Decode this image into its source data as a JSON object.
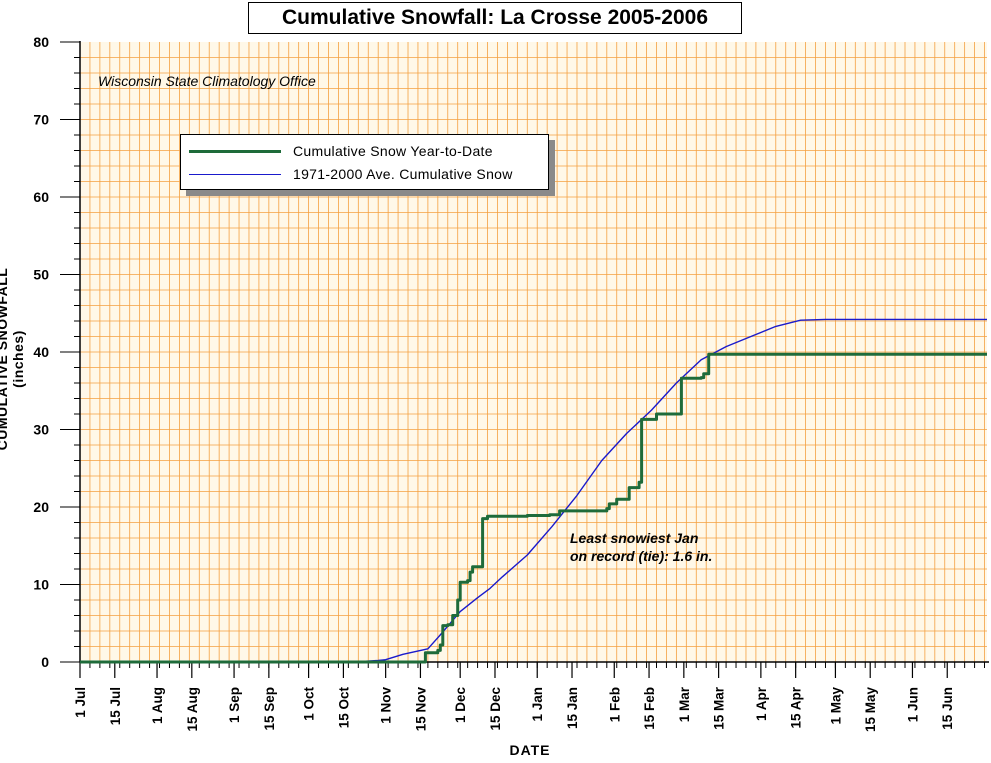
{
  "chart_data": {
    "type": "line",
    "title": "Cumulative Snowfall: La Crosse 2005-2006",
    "source_note": "Wisconsin State Climatology Office",
    "xlabel": "DATE",
    "ylabel": "CUMULATIVE SNOWFALL (inches)",
    "ylim": [
      0,
      80
    ],
    "yticks": [
      "0",
      "10",
      "20",
      "30",
      "40",
      "50",
      "60",
      "70",
      "80"
    ],
    "xlim_days": [
      0,
      365
    ],
    "x_unit": "days from 1 Jul",
    "xticks": [
      {
        "label": "1 Jul",
        "day": 0
      },
      {
        "label": "15 Jul",
        "day": 14
      },
      {
        "label": "1 Aug",
        "day": 31
      },
      {
        "label": "15 Aug",
        "day": 45
      },
      {
        "label": "1 Sep",
        "day": 62
      },
      {
        "label": "15 Sep",
        "day": 76
      },
      {
        "label": "1 Oct",
        "day": 92
      },
      {
        "label": "15 Oct",
        "day": 106
      },
      {
        "label": "1 Nov",
        "day": 123
      },
      {
        "label": "15 Nov",
        "day": 137
      },
      {
        "label": "1 Dec",
        "day": 153
      },
      {
        "label": "15 Dec",
        "day": 167
      },
      {
        "label": "1 Jan",
        "day": 184
      },
      {
        "label": "15 Jan",
        "day": 198
      },
      {
        "label": "1 Feb",
        "day": 215
      },
      {
        "label": "15 Feb",
        "day": 229
      },
      {
        "label": "1 Mar",
        "day": 243
      },
      {
        "label": "15 Mar",
        "day": 257
      },
      {
        "label": "1 Apr",
        "day": 274
      },
      {
        "label": "15 Apr",
        "day": 288
      },
      {
        "label": "1 May",
        "day": 304
      },
      {
        "label": "15 May",
        "day": 318
      },
      {
        "label": "1 Jun",
        "day": 335
      },
      {
        "label": "15 Jun",
        "day": 349
      }
    ],
    "grid": true,
    "legend_position": "top-left",
    "series": [
      {
        "name": "Cumulative Snow Year-to-Date",
        "color": "#1e6b3a",
        "step": true,
        "points": [
          [
            0,
            0
          ],
          [
            137,
            0
          ],
          [
            139,
            1.2
          ],
          [
            144,
            1.5
          ],
          [
            145,
            2.2
          ],
          [
            146,
            4.7
          ],
          [
            148,
            4.8
          ],
          [
            150,
            6.0
          ],
          [
            152,
            8.0
          ],
          [
            153,
            10.3
          ],
          [
            156,
            10.5
          ],
          [
            157,
            11.6
          ],
          [
            158,
            12.3
          ],
          [
            161,
            12.3
          ],
          [
            162,
            18.5
          ],
          [
            164,
            18.8
          ],
          [
            180,
            18.9
          ],
          [
            189,
            19.0
          ],
          [
            193,
            19.5
          ],
          [
            212,
            19.8
          ],
          [
            213,
            20.4
          ],
          [
            216,
            21.0
          ],
          [
            221,
            22.5
          ],
          [
            225,
            23.2
          ],
          [
            226,
            31.3
          ],
          [
            232,
            32.0
          ],
          [
            241,
            32.0
          ],
          [
            242,
            36.6
          ],
          [
            250,
            36.7
          ],
          [
            251,
            37.2
          ],
          [
            253,
            39.7
          ],
          [
            365,
            39.7
          ]
        ]
      },
      {
        "name": "1971-2000 Ave. Cumulative Snow",
        "color": "#1a1acc",
        "step": false,
        "points": [
          [
            0,
            0
          ],
          [
            110,
            0
          ],
          [
            120,
            0.2
          ],
          [
            123,
            0.3
          ],
          [
            130,
            1.0
          ],
          [
            140,
            1.7
          ],
          [
            145,
            3.5
          ],
          [
            153,
            6.5
          ],
          [
            160,
            8.3
          ],
          [
            165,
            9.5
          ],
          [
            170,
            11.0
          ],
          [
            180,
            13.8
          ],
          [
            190,
            17.5
          ],
          [
            200,
            21.5
          ],
          [
            210,
            26.0
          ],
          [
            220,
            29.5
          ],
          [
            230,
            32.5
          ],
          [
            240,
            36.0
          ],
          [
            250,
            39.0
          ],
          [
            260,
            40.7
          ],
          [
            270,
            42.0
          ],
          [
            280,
            43.3
          ],
          [
            290,
            44.1
          ],
          [
            300,
            44.2
          ],
          [
            365,
            44.2
          ]
        ]
      }
    ],
    "annotation": "Least snowiest Jan\non record (tie): 1.6 in."
  }
}
